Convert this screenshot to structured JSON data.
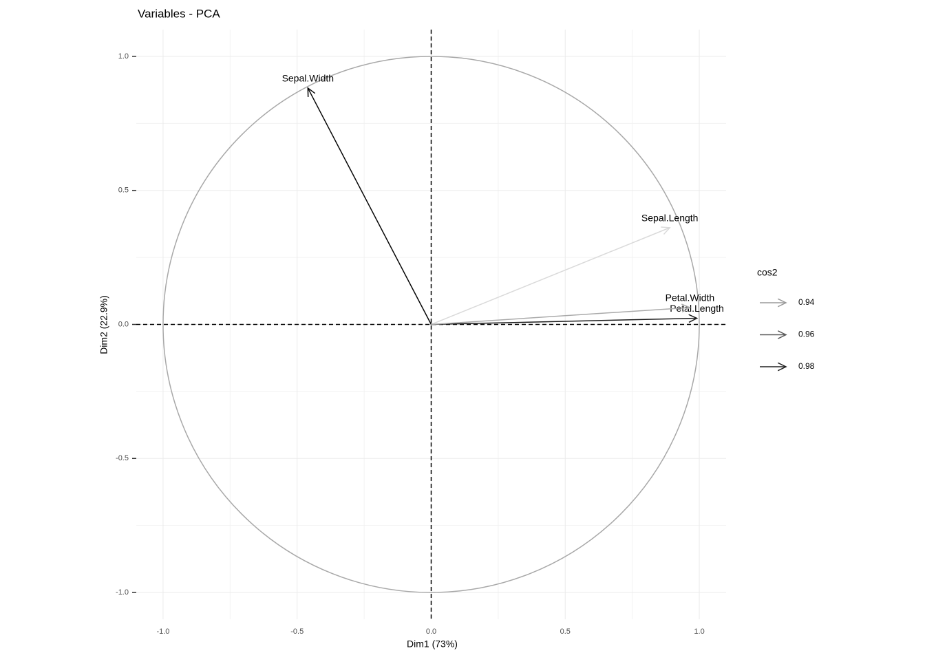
{
  "chart_data": {
    "type": "pca_variables",
    "title": "Variables - PCA",
    "xlabel": "Dim1 (73%)",
    "ylabel": "Dim2 (22.9%)",
    "xlim": [
      -1.1,
      1.1
    ],
    "ylim": [
      -1.1,
      1.1
    ],
    "xticks": [
      {
        "value": -1,
        "label": "-1.0"
      },
      -0.5,
      {
        "value": 0,
        "label": "0.0"
      },
      0.5,
      {
        "value": 1,
        "label": "1.0"
      }
    ],
    "yticks": [
      {
        "value": -1,
        "label": "-1.0"
      },
      -0.5,
      {
        "value": 0,
        "label": "0.0"
      },
      0.5,
      {
        "value": 1,
        "label": "1.0"
      }
    ],
    "grid": true,
    "variables": [
      {
        "name": "Sepal.Length",
        "x": 0.89,
        "y": 0.361,
        "cos2": 0.92
      },
      {
        "name": "Sepal.Width",
        "x": -0.46,
        "y": 0.882,
        "cos2": 0.99
      },
      {
        "name": "Petal.Length",
        "x": 0.991,
        "y": 0.023,
        "cos2": 0.982
      },
      {
        "name": "Petal.Width",
        "x": 0.965,
        "y": 0.063,
        "cos2": 0.935
      }
    ],
    "legend": {
      "title": "cos2",
      "ticks": [
        0.94,
        0.96,
        0.98
      ],
      "colors": [
        "#9a9a9a",
        "#5a5a5a",
        "#222222"
      ]
    }
  }
}
